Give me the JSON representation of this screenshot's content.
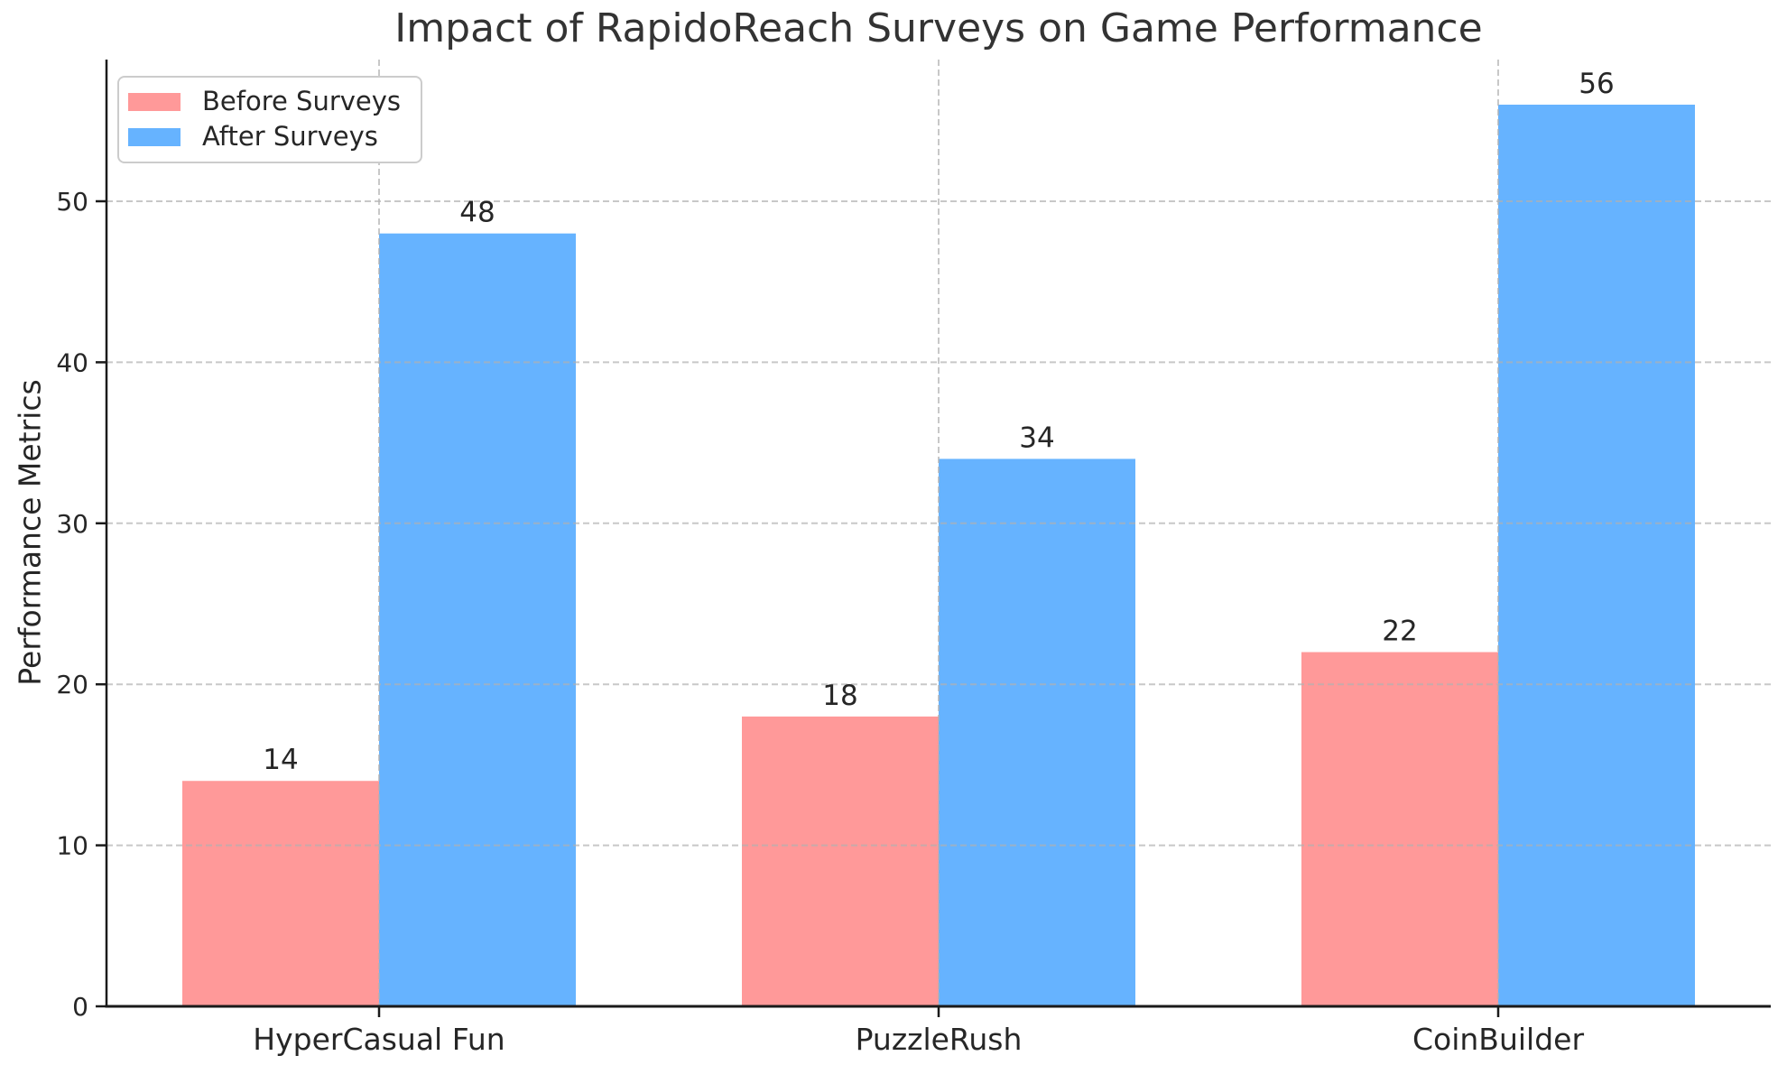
{
  "chart_data": {
    "type": "bar",
    "title": "Impact of RapidoReach Surveys on Game Performance",
    "xlabel": "",
    "ylabel": "Performance Metrics",
    "categories": [
      "HyperCasual Fun",
      "PuzzleRush",
      "CoinBuilder"
    ],
    "series": [
      {
        "name": "Before Surveys",
        "color": "#FF9999",
        "values": [
          14,
          18,
          22
        ]
      },
      {
        "name": "After Surveys",
        "color": "#66B3FF",
        "values": [
          48,
          34,
          56
        ]
      }
    ],
    "bar_value_labels": {
      "before": [
        14,
        18,
        22
      ],
      "after": [
        48,
        34,
        56
      ]
    },
    "yticks": [
      0,
      10,
      20,
      30,
      40,
      50
    ],
    "ylim": [
      0,
      58.8
    ],
    "grid": {
      "visible": true,
      "style": "dashed",
      "color": "#b0b0b0",
      "opacity": 0.7,
      "drawn_over_bars": true
    },
    "legend_position": "upper-left",
    "show_value_labels": true
  },
  "colors": {
    "background": "#FFFFFF",
    "text": "#262626",
    "title_text": "#333333",
    "axis_spine": "#1A1A1A",
    "legend_border": "#CCCCCC"
  }
}
